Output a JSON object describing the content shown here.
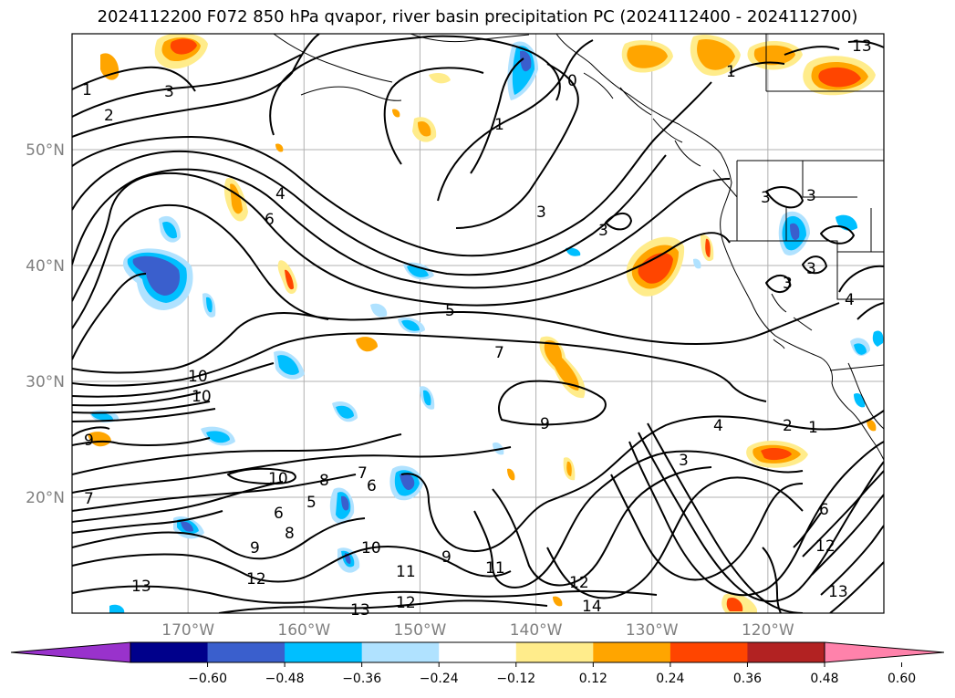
{
  "title": "2024112200 F072 850 hPa qvapor, river basin precipitation PC (2024112400 - 2024112700)",
  "map": {
    "lat_ticks": [
      {
        "label": "50°N",
        "lat": 50
      },
      {
        "label": "40°N",
        "lat": 40
      },
      {
        "label": "30°N",
        "lat": 30
      },
      {
        "label": "20°N",
        "lat": 20
      }
    ],
    "lon_ticks": [
      {
        "label": "170°W",
        "lon": -170
      },
      {
        "label": "160°W",
        "lon": -160
      },
      {
        "label": "150°W",
        "lon": -150
      },
      {
        "label": "140°W",
        "lon": -140
      },
      {
        "label": "130°W",
        "lon": -130
      },
      {
        "label": "120°W",
        "lon": -120
      }
    ],
    "gridline_color": "#b0b0b0",
    "contour_labels": [
      "1",
      "2",
      "3",
      "1",
      "3",
      "4",
      "6",
      "0",
      "1",
      "3",
      "3",
      "5",
      "7",
      "10",
      "10",
      "9",
      "9",
      "4",
      "2",
      "1",
      "3",
      "10",
      "8",
      "7",
      "6",
      "6",
      "5",
      "8",
      "9",
      "10",
      "12",
      "11",
      "11",
      "9",
      "12",
      "13",
      "13",
      "12",
      "14",
      "13",
      "12",
      "13",
      "7",
      "6",
      "3",
      "3",
      "3",
      "4"
    ]
  },
  "colorbar": {
    "ticks": [
      "−0.60",
      "−0.48",
      "−0.36",
      "−0.24",
      "−0.12",
      "0.12",
      "0.24",
      "0.36",
      "0.48",
      "0.60"
    ],
    "colors": [
      "#9932cc",
      "#00008b",
      "#3a5fcd",
      "#00bfff",
      "#b0e2ff",
      "#ffffff",
      "#ffec8b",
      "#ffa500",
      "#ff4500",
      "#b22222",
      "#ff82ab"
    ]
  }
}
